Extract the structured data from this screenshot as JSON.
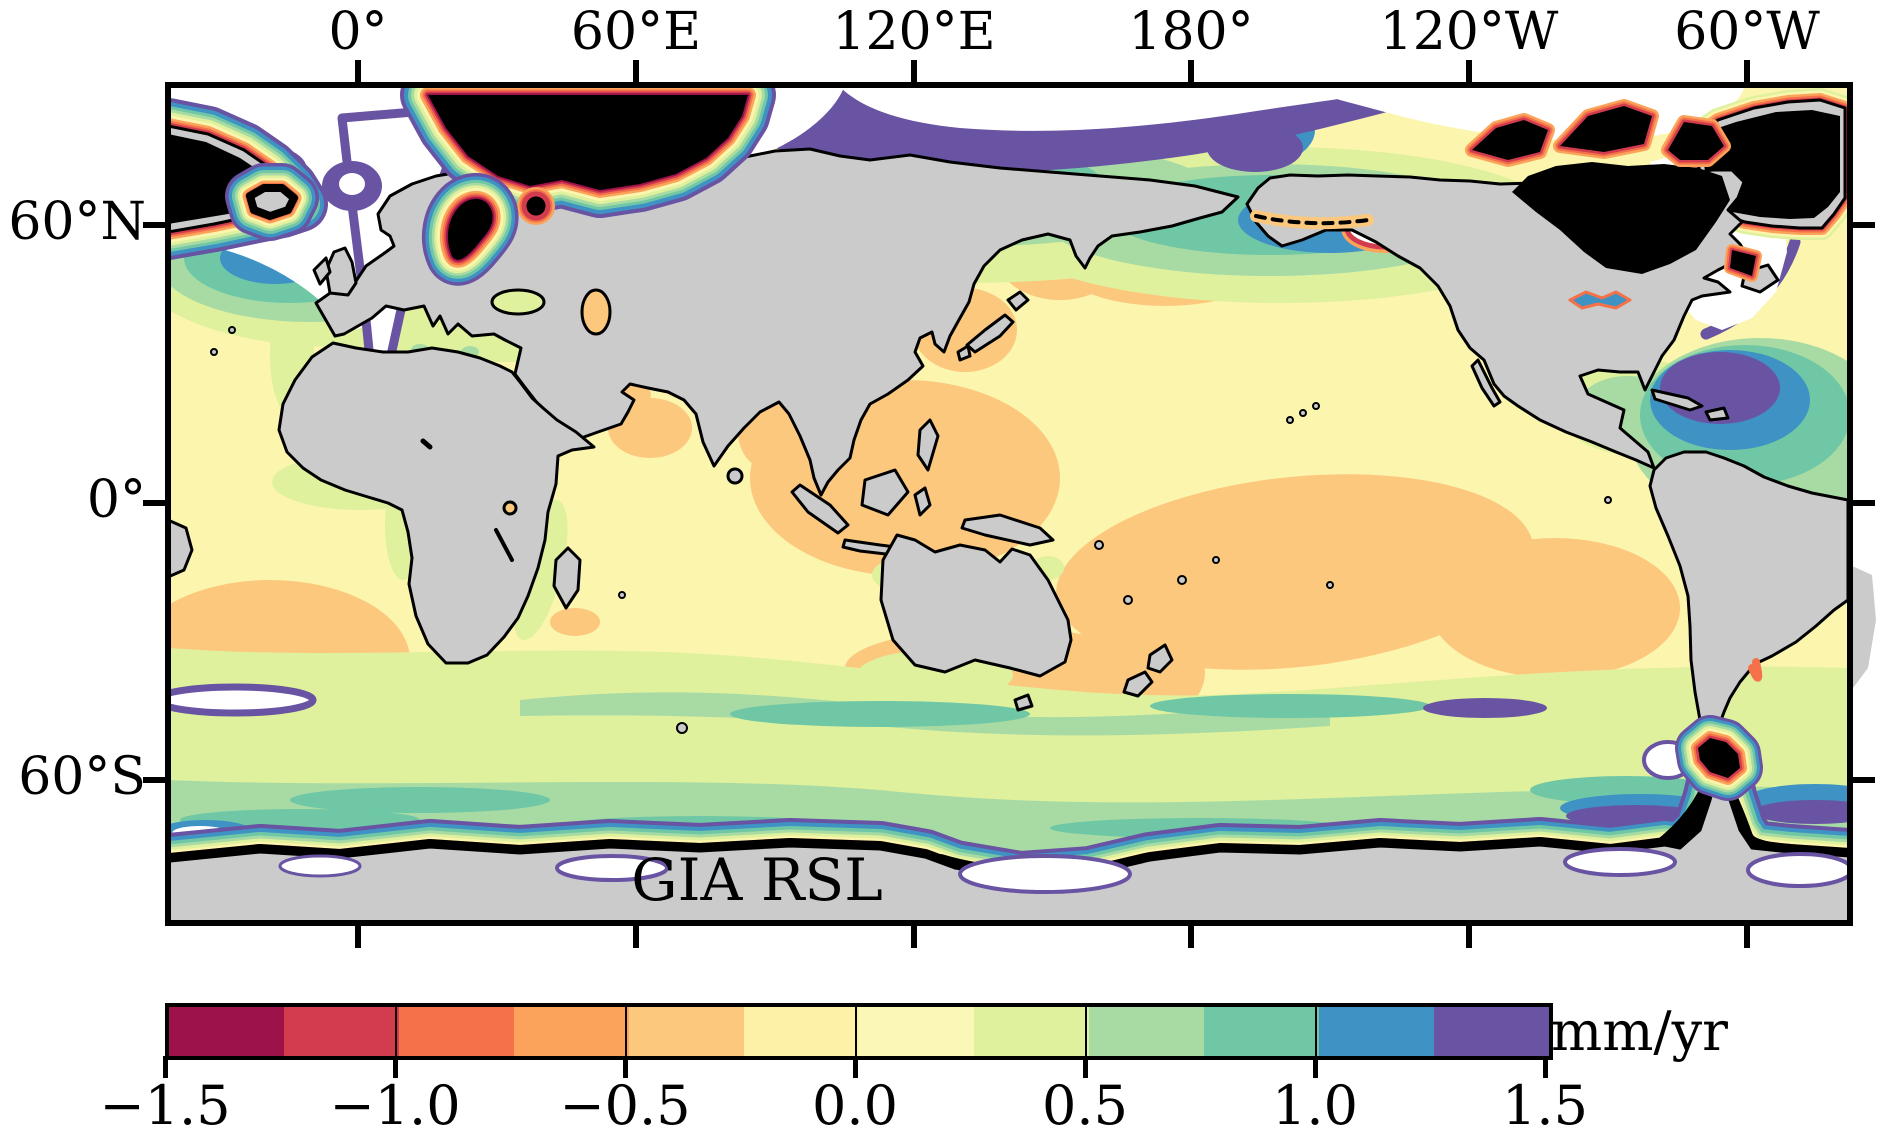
{
  "figure": {
    "title": "GIA RSL",
    "top_axis_ticks": [
      "0°",
      "60°E",
      "120°E",
      "180°",
      "120°W",
      "60°W"
    ],
    "left_axis_ticks": [
      "60°N",
      "0°",
      "60°S"
    ],
    "colorbar": {
      "tick_labels": [
        "−1.5",
        "−1.0",
        "−0.5",
        "0.0",
        "0.5",
        "1.0",
        "1.5"
      ],
      "unit_label": "mm/yr",
      "segment_colors": [
        "#9D1349",
        "#D23C4E",
        "#F4714A",
        "#FBA35B",
        "#FCC87E",
        "#FDF0A7",
        "#FAF7B7",
        "#DFF19D",
        "#A8DBA4",
        "#6FC7A5",
        "#3E92C4",
        "#6953A3"
      ],
      "under_color": "#000000",
      "over_color": "#ffffff"
    },
    "map": {
      "land_color": "#cbcbcb",
      "coastline_color": "#000000",
      "ocean_base_color": "#fbf5ad"
    }
  },
  "chart_data": {
    "type": "heatmap",
    "title": "GIA RSL",
    "units": "mm/yr",
    "projection": "equirectangular world map, Pacific-centered (Europe/Africa left, Americas right)",
    "x_axis": {
      "position": "top",
      "ticks": [
        "0°",
        "60°E",
        "120°E",
        "180°",
        "120°W",
        "60°W"
      ]
    },
    "y_axis": {
      "position": "left",
      "ticks": [
        "60°N",
        "0°",
        "60°S"
      ]
    },
    "colorbar": {
      "range": [
        -1.5,
        1.5
      ],
      "step": 0.25,
      "tick_values": [
        -1.5,
        -1.0,
        -0.5,
        0.0,
        0.5,
        1.0,
        1.5
      ],
      "colors": [
        "#9D1349",
        "#D23C4E",
        "#F4714A",
        "#FBA35B",
        "#FCC87E",
        "#FDF0A7",
        "#FAF7B7",
        "#DFF19D",
        "#A8DBA4",
        "#6FC7A5",
        "#3E92C4",
        "#6953A3"
      ],
      "under_color": "#000000",
      "over_color": "#ffffff",
      "orientation": "horizontal"
    },
    "features": {
      "land_color": "#cbcbcb",
      "far_field_ocean_value": "slightly negative (about -0.25 to 0 mm/yr, pale yellow)",
      "under_range_regions": "Hudson Bay / Canadian Arctic, Greenland, Gulf of Bothnia, Barents Sea, Antarctic coastal margin, Patagonia (black, < -1.5 mm/yr) with tight rainbow contour fringes",
      "over_range_regions": "Arctic Ocean band, Labrador Sea, Norwegian Sea, seas fringing Antarctica (white, > +1.5 mm/yr)",
      "positive_bands": "green-teal-blue-purple bands in northern North Atlantic, North Pacific, off NE North America and around the Southern Ocean",
      "negative_patches": "light-orange subtropical patches in the South Pacific, South Atlantic/Indian and North Pacific"
    }
  }
}
